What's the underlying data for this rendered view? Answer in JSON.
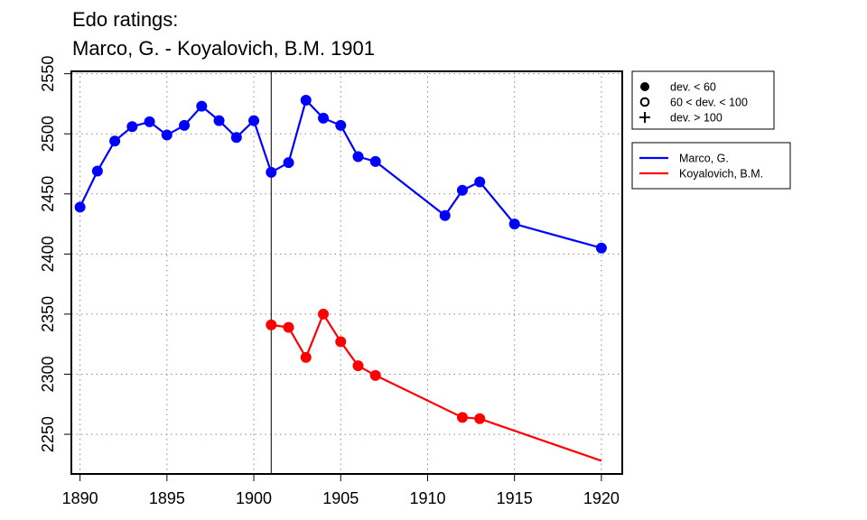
{
  "chart_data": {
    "type": "line",
    "title_lines": [
      "Edo ratings:",
      "Marco, G. - Koyalovich, B.M. 1901"
    ],
    "xlabel": "",
    "ylabel": "",
    "xlim": [
      1889.5,
      1921.2
    ],
    "ylim": [
      2217,
      2552
    ],
    "x_ticks": [
      1890,
      1895,
      1900,
      1905,
      1910,
      1915,
      1920
    ],
    "y_ticks": [
      2250,
      2300,
      2350,
      2400,
      2450,
      2500,
      2550
    ],
    "grid": true,
    "reference_line_x": 1901,
    "series": [
      {
        "name": "Marco, G.",
        "color": "#0000ff",
        "points": [
          {
            "x": 1890,
            "y": 2439,
            "marker": "filled"
          },
          {
            "x": 1891,
            "y": 2469,
            "marker": "filled"
          },
          {
            "x": 1892,
            "y": 2494,
            "marker": "filled"
          },
          {
            "x": 1893,
            "y": 2506,
            "marker": "filled"
          },
          {
            "x": 1894,
            "y": 2510,
            "marker": "filled"
          },
          {
            "x": 1895,
            "y": 2499,
            "marker": "filled"
          },
          {
            "x": 1896,
            "y": 2507,
            "marker": "filled"
          },
          {
            "x": 1897,
            "y": 2523,
            "marker": "filled"
          },
          {
            "x": 1898,
            "y": 2511,
            "marker": "filled"
          },
          {
            "x": 1899,
            "y": 2497,
            "marker": "filled"
          },
          {
            "x": 1900,
            "y": 2511,
            "marker": "filled"
          },
          {
            "x": 1901,
            "y": 2468,
            "marker": "filled"
          },
          {
            "x": 1902,
            "y": 2476,
            "marker": "filled"
          },
          {
            "x": 1903,
            "y": 2528,
            "marker": "filled"
          },
          {
            "x": 1904,
            "y": 2513,
            "marker": "filled"
          },
          {
            "x": 1905,
            "y": 2507,
            "marker": "filled"
          },
          {
            "x": 1906,
            "y": 2481,
            "marker": "filled"
          },
          {
            "x": 1907,
            "y": 2477,
            "marker": "filled"
          },
          {
            "x": 1911,
            "y": 2432,
            "marker": "filled"
          },
          {
            "x": 1912,
            "y": 2453,
            "marker": "filled"
          },
          {
            "x": 1913,
            "y": 2460,
            "marker": "filled"
          },
          {
            "x": 1915,
            "y": 2425,
            "marker": "filled"
          },
          {
            "x": 1920,
            "y": 2405,
            "marker": "filled"
          }
        ]
      },
      {
        "name": "Koyalovich, B.M.",
        "color": "#ff0000",
        "points": [
          {
            "x": 1901,
            "y": 2341,
            "marker": "filled"
          },
          {
            "x": 1902,
            "y": 2339,
            "marker": "filled"
          },
          {
            "x": 1903,
            "y": 2314,
            "marker": "filled"
          },
          {
            "x": 1904,
            "y": 2350,
            "marker": "filled"
          },
          {
            "x": 1905,
            "y": 2327,
            "marker": "filled"
          },
          {
            "x": 1906,
            "y": 2307,
            "marker": "filled"
          },
          {
            "x": 1907,
            "y": 2299,
            "marker": "filled"
          },
          {
            "x": 1912,
            "y": 2264,
            "marker": "filled"
          },
          {
            "x": 1913,
            "y": 2263,
            "marker": "filled"
          },
          {
            "x": 1920,
            "y": 2228,
            "marker": "none"
          }
        ]
      }
    ],
    "marker_legend": [
      {
        "symbol": "filled-circle",
        "label": "dev. < 60"
      },
      {
        "symbol": "open-circle",
        "label": "60 < dev. < 100"
      },
      {
        "symbol": "plus",
        "label": "dev. > 100"
      }
    ]
  }
}
